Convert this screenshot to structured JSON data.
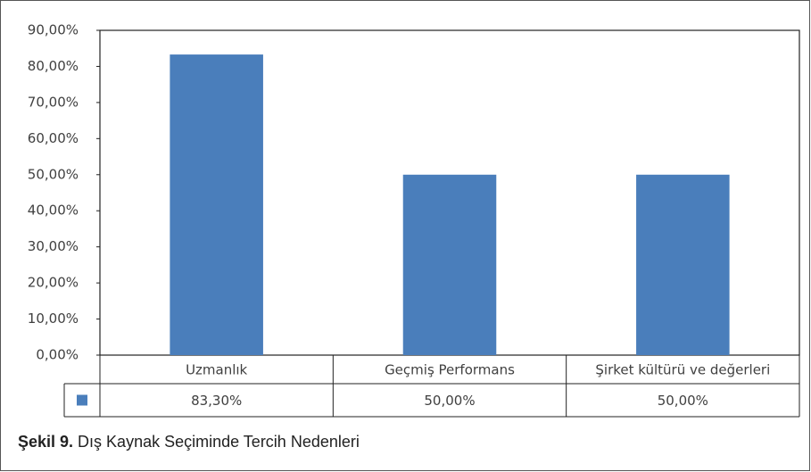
{
  "chart_data": {
    "type": "bar",
    "categories": [
      "Uzmanlık",
      "Geçmiş Performans",
      "Şirket kültürü ve değerleri"
    ],
    "values": [
      83.3,
      50,
      50
    ],
    "value_labels": [
      "83,30%",
      "50,00%",
      "50,00%"
    ],
    "color": "#4a7ebb",
    "ylim": [
      0,
      90
    ],
    "yticks": [
      {
        "value": 0,
        "label": "0,00%"
      },
      {
        "value": 10,
        "label": "10,00%"
      },
      {
        "value": 20,
        "label": "20,00%"
      },
      {
        "value": 30,
        "label": "30,00%"
      },
      {
        "value": 40,
        "label": "40,00%"
      },
      {
        "value": 50,
        "label": "50,00%"
      },
      {
        "value": 60,
        "label": "60,00%"
      },
      {
        "value": 70,
        "label": "70,00%"
      },
      {
        "value": 80,
        "label": "80,00%"
      },
      {
        "value": 90,
        "label": "90,00%"
      }
    ],
    "caption": {
      "label": "Şekil 9.",
      "text": "Dış Kaynak Seçiminde Tercih Nedenleri"
    }
  }
}
